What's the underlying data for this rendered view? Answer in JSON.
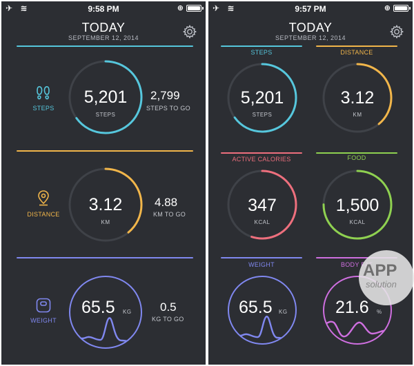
{
  "left": {
    "status": {
      "time": "9:58 PM"
    },
    "header": {
      "title": "TODAY",
      "date": "SEPTEMBER 12, 2014"
    },
    "steps": {
      "label": "STEPS",
      "value": "5,201",
      "unit": "STEPS",
      "togo_value": "2,799",
      "togo_label": "STEPS TO GO",
      "progress": 0.65
    },
    "distance": {
      "label": "DISTANCE",
      "value": "3.12",
      "unit": "KM",
      "togo_value": "4.88",
      "togo_label": "KM TO GO",
      "progress": 0.39
    },
    "weight": {
      "label": "WEIGHT",
      "value": "65.5",
      "unit": "KG",
      "togo_value": "0.5",
      "togo_label": "KG TO GO"
    }
  },
  "right": {
    "status": {
      "time": "9:57 PM"
    },
    "header": {
      "title": "TODAY",
      "date": "SEPTEMBER 12, 2014"
    },
    "steps": {
      "label": "STEPS",
      "value": "5,201",
      "unit": "STEPS",
      "progress": 0.65
    },
    "distance": {
      "label": "DISTANCE",
      "value": "3.12",
      "unit": "KM",
      "progress": 0.39
    },
    "active_calories": {
      "label": "ACTIVE CALORIES",
      "value": "347",
      "unit": "KCAL",
      "progress": 0.55
    },
    "food": {
      "label": "FOOD",
      "value": "1,500",
      "unit": "KCAL",
      "progress": 0.75
    },
    "weight": {
      "label": "WEIGHT",
      "value": "65.5",
      "unit": "KG"
    },
    "body_fat": {
      "label": "BODY FAT",
      "value": "21.6",
      "unit": "%"
    }
  },
  "colors": {
    "background": "#2c2e33",
    "track": "#3f4248",
    "steps": "#56c7dd",
    "distance": "#f2b64a",
    "calories": "#ee6f7d",
    "food": "#8fd150",
    "weight": "#8088f0",
    "bodyfat": "#cf6fe0"
  },
  "icons": {
    "airplane": "airplane-icon",
    "wifi": "wifi-icon",
    "battery": "battery-icon",
    "gear": "gear-icon",
    "footprints": "footprints-icon",
    "location": "location-pin-icon",
    "scale": "scale-icon"
  },
  "status_glyphs": {
    "airplane": "✈",
    "wifi": "≋",
    "orientation_lock": "⊕"
  },
  "watermark": {
    "main": "APP",
    "sub": "solution"
  }
}
